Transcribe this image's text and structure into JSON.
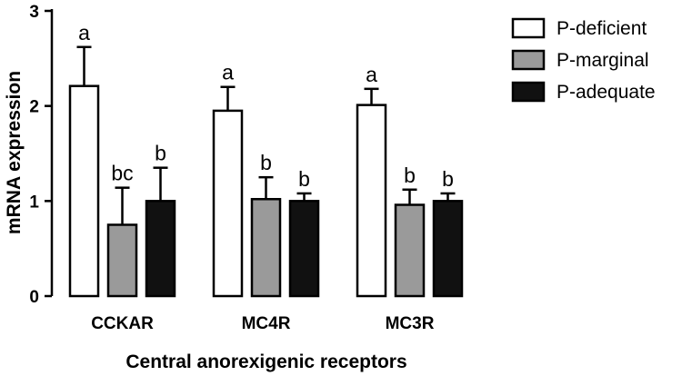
{
  "chart_data": {
    "type": "bar",
    "ylabel": "mRNA expression",
    "xlabel": "Central anorexigenic receptors",
    "ylim": [
      0,
      3
    ],
    "yticks": [
      0,
      1,
      2,
      3
    ],
    "categories": [
      "CCKAR",
      "MC4R",
      "MC3R"
    ],
    "series": [
      {
        "name": "P-deficient",
        "color": "#ffffff",
        "values": [
          2.21,
          1.95,
          2.01
        ],
        "errors": [
          0.41,
          0.25,
          0.17
        ],
        "labels": [
          "a",
          "a",
          "a"
        ]
      },
      {
        "name": "P-marginal",
        "color": "#9a9a9a",
        "values": [
          0.75,
          1.02,
          0.96
        ],
        "errors": [
          0.39,
          0.23,
          0.16
        ],
        "labels": [
          "bc",
          "b",
          "b"
        ]
      },
      {
        "name": "P-adequate",
        "color": "#111111",
        "values": [
          1.0,
          1.0,
          1.0
        ],
        "errors": [
          0.35,
          0.08,
          0.08
        ],
        "labels": [
          "b",
          "b",
          "b"
        ]
      }
    ],
    "legend": "top-right",
    "grid": false
  }
}
